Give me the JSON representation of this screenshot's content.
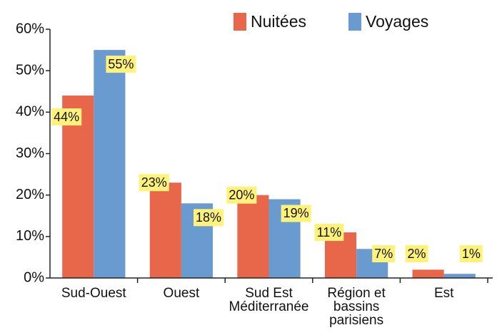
{
  "chart_data": {
    "type": "bar",
    "categories": [
      [
        "Sud-Ouest"
      ],
      [
        "Ouest"
      ],
      [
        "Sud Est",
        "Méditerranée"
      ],
      [
        "Région et",
        "bassins",
        "parisiens"
      ],
      [
        "Est"
      ]
    ],
    "series": [
      {
        "name": "Nuitées",
        "color": "#e8674a",
        "values": [
          44,
          23,
          20,
          11,
          2
        ],
        "value_labels": [
          "44%",
          "23%",
          "20%",
          "11%",
          "2%"
        ]
      },
      {
        "name": "Voyages",
        "color": "#6a9bd0",
        "values": [
          55,
          18,
          19,
          7,
          1
        ],
        "value_labels": [
          "55%",
          "18%",
          "19%",
          "7%",
          "1%"
        ]
      }
    ],
    "ylim": [
      0,
      60
    ],
    "yticks": [
      {
        "value": 0,
        "label": "0%"
      },
      {
        "value": 10,
        "label": "10%"
      },
      {
        "value": 20,
        "label": "20%"
      },
      {
        "value": 30,
        "label": "30%"
      },
      {
        "value": 40,
        "label": "40%"
      },
      {
        "value": 50,
        "label": "50%"
      },
      {
        "value": 60,
        "label": "60%"
      }
    ],
    "legend": "top-right"
  }
}
